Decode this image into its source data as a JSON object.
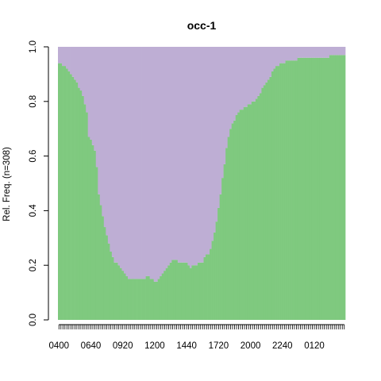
{
  "chart_data": {
    "type": "area",
    "title": "occ-1",
    "xlabel": "",
    "ylabel": "Rel. Freq. (n=308)",
    "ylim": [
      0,
      1
    ],
    "yticks": [
      "0.0",
      "0.2",
      "0.4",
      "0.6",
      "0.8",
      "1.0"
    ],
    "xtick_labels": [
      "0400",
      "0640",
      "0920",
      "1200",
      "1440",
      "1720",
      "2000",
      "2240",
      "0120"
    ],
    "n_bins": 144,
    "grid": false,
    "legend": "none",
    "colors": {
      "green": "#7FC97F",
      "purple": "#BEAED4"
    },
    "series": [
      {
        "color": "#7FC97F",
        "x": [
          "0400",
          "0410",
          "0420",
          "0430",
          "0440",
          "0450",
          "0500",
          "0510",
          "0520",
          "0530",
          "0540",
          "0550",
          "0600",
          "0610",
          "0620",
          "0630",
          "0640",
          "0650",
          "0700",
          "0710",
          "0720",
          "0730",
          "0740",
          "0750",
          "0800",
          "0810",
          "0820",
          "0830",
          "0840",
          "0850",
          "0900",
          "0910",
          "0920",
          "0930",
          "0940",
          "0950",
          "1000",
          "1010",
          "1020",
          "1030",
          "1040",
          "1050",
          "1100",
          "1110",
          "1120",
          "1130",
          "1140",
          "1150",
          "1200",
          "1210",
          "1220",
          "1230",
          "1240",
          "1250",
          "1300",
          "1310",
          "1320",
          "1330",
          "1340",
          "1350",
          "1400",
          "1410",
          "1420",
          "1430",
          "1440",
          "1450",
          "1500",
          "1510",
          "1520",
          "1530",
          "1540",
          "1550",
          "1600",
          "1610",
          "1620",
          "1630",
          "1640",
          "1650",
          "1700",
          "1710",
          "1720",
          "1730",
          "1740",
          "1750",
          "1800",
          "1810",
          "1820",
          "1830",
          "1840",
          "1850",
          "1900",
          "1910",
          "1920",
          "1930",
          "1940",
          "1950",
          "2000",
          "2010",
          "2020",
          "2030",
          "2040",
          "2050",
          "2100",
          "2110",
          "2120",
          "2130",
          "2140",
          "2150",
          "2200",
          "2210",
          "2220",
          "2230",
          "2240",
          "2250",
          "2300",
          "2310",
          "2320",
          "2330",
          "2340",
          "2350",
          "0000",
          "0010",
          "0020",
          "0030",
          "0040",
          "0050",
          "0100",
          "0110",
          "0120",
          "0130",
          "0140",
          "0150",
          "0200",
          "0210",
          "0220",
          "0230",
          "0240",
          "0250",
          "0300",
          "0310",
          "0320",
          "0330",
          "0340",
          "0350"
        ],
        "values": [
          0.94,
          0.94,
          0.93,
          0.93,
          0.92,
          0.91,
          0.9,
          0.89,
          0.88,
          0.87,
          0.85,
          0.84,
          0.82,
          0.79,
          0.76,
          0.67,
          0.66,
          0.64,
          0.62,
          0.56,
          0.46,
          0.42,
          0.38,
          0.34,
          0.31,
          0.28,
          0.25,
          0.23,
          0.21,
          0.21,
          0.2,
          0.19,
          0.18,
          0.17,
          0.16,
          0.15,
          0.15,
          0.15,
          0.15,
          0.15,
          0.15,
          0.15,
          0.15,
          0.15,
          0.16,
          0.16,
          0.15,
          0.15,
          0.14,
          0.14,
          0.15,
          0.16,
          0.17,
          0.18,
          0.19,
          0.2,
          0.21,
          0.22,
          0.22,
          0.22,
          0.21,
          0.21,
          0.21,
          0.21,
          0.21,
          0.2,
          0.19,
          0.2,
          0.2,
          0.2,
          0.21,
          0.21,
          0.21,
          0.23,
          0.24,
          0.24,
          0.26,
          0.29,
          0.32,
          0.36,
          0.41,
          0.46,
          0.52,
          0.57,
          0.63,
          0.67,
          0.7,
          0.72,
          0.73,
          0.75,
          0.76,
          0.77,
          0.77,
          0.78,
          0.78,
          0.79,
          0.79,
          0.8,
          0.8,
          0.81,
          0.82,
          0.83,
          0.85,
          0.86,
          0.87,
          0.88,
          0.89,
          0.91,
          0.92,
          0.93,
          0.93,
          0.94,
          0.94,
          0.94,
          0.95,
          0.95,
          0.95,
          0.95,
          0.95,
          0.95,
          0.96,
          0.96,
          0.96,
          0.96,
          0.96,
          0.96,
          0.96,
          0.96,
          0.96,
          0.96,
          0.96,
          0.96,
          0.96,
          0.96,
          0.96,
          0.96,
          0.97,
          0.97,
          0.97,
          0.97,
          0.97,
          0.97,
          0.97,
          0.97
        ]
      },
      {
        "color": "#BEAED4",
        "values_note": "",
        "fills_to": 1.0
      }
    ]
  }
}
